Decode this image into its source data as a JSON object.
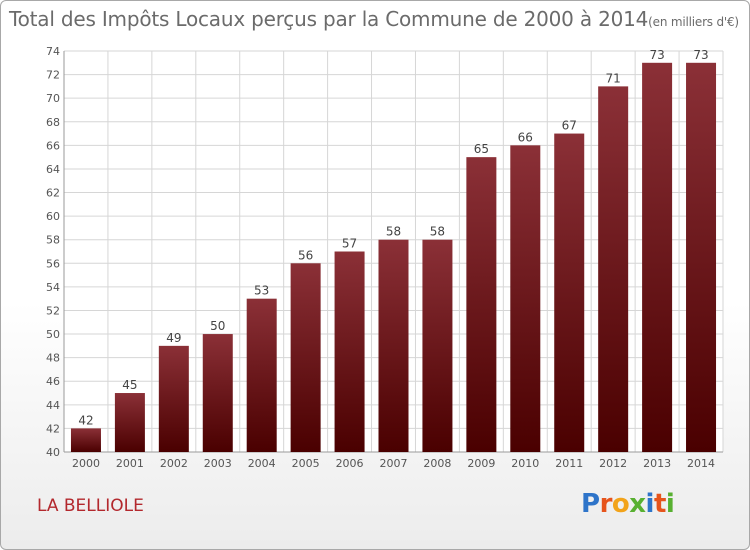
{
  "title": "Total des Impôts Locaux perçus par la Commune de 2000 à 2014",
  "title_unit": "(en milliers d'€)",
  "commune": "LA BELLIOLE",
  "brand": {
    "letters": [
      "P",
      "r",
      "o",
      "x",
      "i",
      "t",
      "i"
    ],
    "colors": [
      "#2e74c9",
      "#e6541c",
      "#f2a31a",
      "#58b031",
      "#2e74c9",
      "#e6541c",
      "#58b031"
    ]
  },
  "colors": {
    "bar_top": "#8b3037",
    "bar_bottom": "#4a0000",
    "grid": "#d6d6d6",
    "axis_text": "#555555"
  },
  "chart_data": {
    "type": "bar",
    "categories": [
      "2000",
      "2001",
      "2002",
      "2003",
      "2004",
      "2005",
      "2006",
      "2007",
      "2008",
      "2009",
      "2010",
      "2011",
      "2012",
      "2013",
      "2014"
    ],
    "values": [
      42,
      45,
      49,
      50,
      53,
      56,
      57,
      58,
      58,
      65,
      66,
      67,
      71,
      73,
      73
    ],
    "ylim": [
      40,
      74
    ],
    "yticks": [
      40,
      42,
      44,
      46,
      48,
      50,
      52,
      54,
      56,
      58,
      60,
      62,
      64,
      66,
      68,
      70,
      72,
      74
    ],
    "grid": true,
    "data_labels": true
  }
}
